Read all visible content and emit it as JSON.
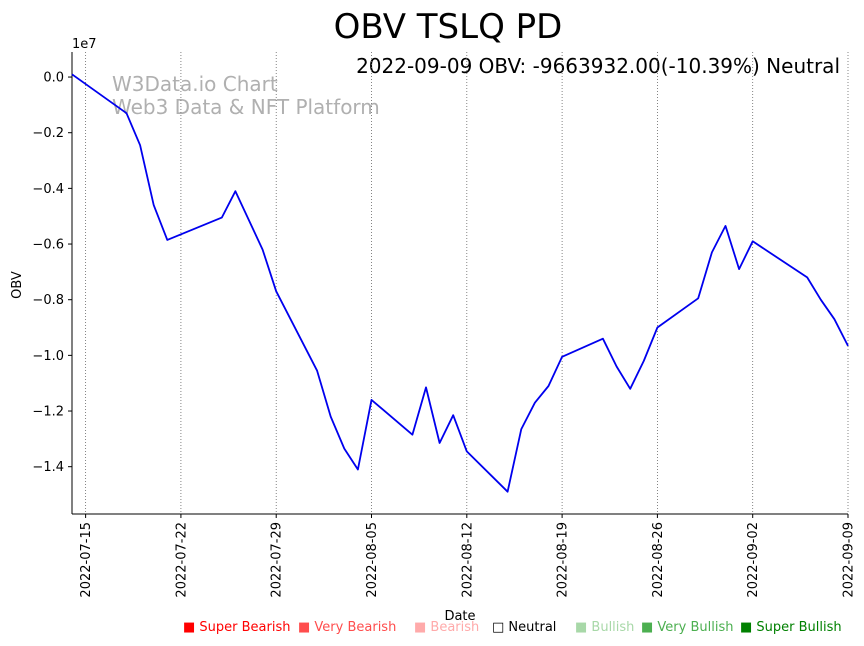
{
  "chart_data": {
    "type": "line",
    "title": "OBV TSLQ PD",
    "annotation": "2022-09-09 OBV: -9663932.00(-10.39%) Neutral",
    "watermark": [
      "W3Data.io Chart",
      "Web3 Data & NFT Platform"
    ],
    "xlabel": "Date",
    "ylabel": "OBV",
    "y_scale_label": "1e7",
    "ylim": [
      -1.57,
      0.09
    ],
    "xlim": [
      "2022-07-14",
      "2022-09-09"
    ],
    "x_ticks": [
      "2022-07-15",
      "2022-07-22",
      "2022-07-29",
      "2022-08-05",
      "2022-08-12",
      "2022-08-19",
      "2022-08-26",
      "2022-09-02",
      "2022-09-09"
    ],
    "y_ticks": [
      0.0,
      -0.2,
      -0.4,
      -0.6,
      -0.8,
      -1.0,
      -1.2,
      -1.4
    ],
    "y_tick_labels": [
      "0.0",
      "−0.2",
      "−0.4",
      "−0.6",
      "−0.8",
      "−1.0",
      "−1.2",
      "−1.4"
    ],
    "grid": "vertical-dotted",
    "series": [
      {
        "name": "OBV",
        "color": "#0000ee",
        "points": [
          [
            "2022-07-14",
            0.01
          ],
          [
            "2022-07-18",
            -0.13
          ],
          [
            "2022-07-19",
            -0.245
          ],
          [
            "2022-07-20",
            -0.46
          ],
          [
            "2022-07-21",
            -0.585
          ],
          [
            "2022-07-25",
            -0.505
          ],
          [
            "2022-07-26",
            -0.41
          ],
          [
            "2022-07-28",
            -0.62
          ],
          [
            "2022-07-29",
            -0.77
          ],
          [
            "2022-08-01",
            -1.055
          ],
          [
            "2022-08-02",
            -1.22
          ],
          [
            "2022-08-03",
            -1.335
          ],
          [
            "2022-08-04",
            -1.41
          ],
          [
            "2022-08-05",
            -1.16
          ],
          [
            "2022-08-08",
            -1.285
          ],
          [
            "2022-08-09",
            -1.115
          ],
          [
            "2022-08-10",
            -1.315
          ],
          [
            "2022-08-11",
            -1.215
          ],
          [
            "2022-08-12",
            -1.345
          ],
          [
            "2022-08-15",
            -1.49
          ],
          [
            "2022-08-16",
            -1.265
          ],
          [
            "2022-08-17",
            -1.17
          ],
          [
            "2022-08-18",
            -1.11
          ],
          [
            "2022-08-19",
            -1.005
          ],
          [
            "2022-08-22",
            -0.94
          ],
          [
            "2022-08-23",
            -1.04
          ],
          [
            "2022-08-24",
            -1.12
          ],
          [
            "2022-08-25",
            -1.02
          ],
          [
            "2022-08-26",
            -0.9
          ],
          [
            "2022-08-29",
            -0.795
          ],
          [
            "2022-08-30",
            -0.63
          ],
          [
            "2022-08-31",
            -0.535
          ],
          [
            "2022-09-01",
            -0.69
          ],
          [
            "2022-09-02",
            -0.59
          ],
          [
            "2022-09-06",
            -0.72
          ],
          [
            "2022-09-07",
            -0.8
          ],
          [
            "2022-09-08",
            -0.87
          ],
          [
            "2022-09-09",
            -0.966
          ]
        ]
      }
    ],
    "legend": [
      {
        "label": "■ Super Bearish",
        "color": "#ff0000"
      },
      {
        "label": "■ Very Bearish",
        "color": "#ff4d4d"
      },
      {
        "label": "■ Bearish",
        "color": "#ffaaaa"
      },
      {
        "label": "□ Neutral",
        "color": "#000000"
      },
      {
        "label": "■ Bullish",
        "color": "#a8d8a8"
      },
      {
        "label": "■ Very Bullish",
        "color": "#4caf50"
      },
      {
        "label": "■ Super Bullish",
        "color": "#008000"
      }
    ]
  }
}
